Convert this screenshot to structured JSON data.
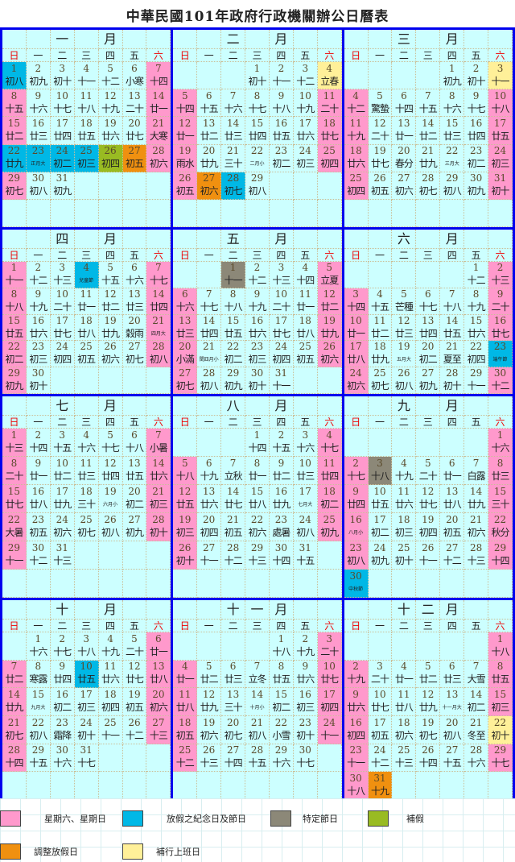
{
  "title": "中華民國101年政府行政機關辦公日曆表",
  "weekdays": [
    "日",
    "一",
    "二",
    "三",
    "四",
    "五",
    "六"
  ],
  "colors": {
    "background": "#ccffff",
    "weekend": "#ff99cc",
    "holiday": "#00b8e6",
    "special": "#8c8878",
    "makeup_holiday": "#99bb22",
    "adjusted": "#f09010",
    "makeup_workday": "#fff099",
    "border": "#0000ee"
  },
  "months": [
    {
      "header": [
        "一",
        "",
        "月"
      ],
      "lunar": [
        "初八",
        "初九",
        "初十",
        "十一",
        "十二",
        "小寒",
        "十四",
        "十五",
        "十六",
        "十七",
        "十八",
        "十九",
        "二十",
        "廿一",
        "廿二",
        "廿三",
        "廿四",
        "廿五",
        "廿六",
        "廿七",
        "大寒",
        "廿九",
        "正月大",
        "初二",
        "初三",
        "初四",
        "初五",
        "初六",
        "初七",
        "初八",
        "初九"
      ],
      "marks": {
        "1": "holiday",
        "22": "holiday",
        "23": "holiday",
        "24": "holiday",
        "25": "holiday",
        "26": "makeup_holiday",
        "27": "adjusted"
      }
    },
    {
      "header": [
        "二",
        "",
        "月"
      ],
      "lunar": [
        "初十",
        "十一",
        "十二",
        "立春",
        "十四",
        "十五",
        "十六",
        "十七",
        "十八",
        "十九",
        "二十",
        "廿一",
        "廿二",
        "廿三",
        "廿四",
        "廿五",
        "廿六",
        "廿七",
        "雨水",
        "廿九",
        "三十",
        "二月小",
        "初二",
        "初三",
        "初四",
        "初五",
        "初六",
        "初七",
        "初八"
      ],
      "marks": {
        "4": "makeup_workday",
        "27": "adjusted",
        "28": "holiday"
      }
    },
    {
      "header": [
        "三",
        "",
        "月"
      ],
      "lunar": [
        "初九",
        "初十",
        "十一",
        "十二",
        "驚蟄",
        "十四",
        "十五",
        "十六",
        "十七",
        "十八",
        "十九",
        "二十",
        "廿一",
        "廿二",
        "廿三",
        "廿四",
        "廿五",
        "廿六",
        "廿七",
        "春分",
        "廿九",
        "三月大",
        "初二",
        "初三",
        "初四",
        "初五",
        "初六",
        "初七",
        "初八",
        "初九",
        "初十"
      ],
      "marks": {
        "3": "makeup_workday"
      }
    },
    {
      "header": [
        "四",
        "",
        "月"
      ],
      "lunar": [
        "十一",
        "十二",
        "十三",
        "兒童節",
        "十五",
        "十六",
        "十七",
        "十八",
        "十九",
        "二十",
        "廿一",
        "廿二",
        "廿三",
        "廿四",
        "廿五",
        "廿六",
        "廿七",
        "廿八",
        "廿九",
        "穀雨",
        "四月大",
        "初二",
        "初三",
        "初四",
        "初五",
        "初六",
        "初七",
        "初八",
        "初九",
        "初十"
      ],
      "marks": {
        "4": "holiday"
      }
    },
    {
      "header": [
        "五",
        "",
        "月"
      ],
      "lunar": [
        "十一",
        "十二",
        "十三",
        "十四",
        "立夏",
        "十六",
        "十七",
        "十八",
        "十九",
        "二十",
        "廿一",
        "廿二",
        "廿三",
        "廿四",
        "廿五",
        "廿六",
        "廿七",
        "廿八",
        "廿九",
        "小滿",
        "閏四月小",
        "初二",
        "初三",
        "初四",
        "初五",
        "初六",
        "初七",
        "初八",
        "初九",
        "初十",
        "十一"
      ],
      "marks": {
        "1": "special"
      }
    },
    {
      "header": [
        "六",
        "",
        "月"
      ],
      "lunar": [
        "十二",
        "十三",
        "十四",
        "十五",
        "芒種",
        "十七",
        "十八",
        "十九",
        "二十",
        "廿一",
        "廿二",
        "廿三",
        "廿四",
        "廿五",
        "廿六",
        "廿七",
        "廿八",
        "廿九",
        "五月大",
        "初二",
        "夏至",
        "初四",
        "端午節",
        "初六",
        "初七",
        "初八",
        "初九",
        "初十",
        "十一",
        "十二"
      ],
      "marks": {
        "23": "holiday"
      }
    },
    {
      "header": [
        "七",
        "",
        "月"
      ],
      "lunar": [
        "十三",
        "十四",
        "十五",
        "十六",
        "十七",
        "十八",
        "小暑",
        "二十",
        "廿一",
        "廿二",
        "廿三",
        "廿四",
        "廿五",
        "廿六",
        "廿七",
        "廿八",
        "廿九",
        "三十",
        "六月小",
        "初二",
        "初三",
        "大暑",
        "初五",
        "初六",
        "初七",
        "初八",
        "初九",
        "初十",
        "十一",
        "十二",
        "十三"
      ],
      "marks": {}
    },
    {
      "header": [
        "八",
        "",
        "月"
      ],
      "lunar": [
        "十四",
        "十五",
        "十六",
        "十七",
        "十八",
        "十九",
        "立秋",
        "廿一",
        "廿二",
        "廿三",
        "廿四",
        "廿五",
        "廿六",
        "廿七",
        "廿八",
        "廿九",
        "七月大",
        "初二",
        "初三",
        "初四",
        "初五",
        "初六",
        "處暑",
        "初八",
        "初九",
        "初十",
        "十一",
        "十二",
        "十三",
        "十四",
        "十五"
      ],
      "marks": {}
    },
    {
      "header": [
        "九",
        "",
        "月"
      ],
      "lunar": [
        "十六",
        "十七",
        "十八",
        "十九",
        "二十",
        "廿一",
        "白露",
        "廿三",
        "廿四",
        "廿五",
        "廿六",
        "廿七",
        "廿八",
        "廿九",
        "三十",
        "八月小",
        "初二",
        "初三",
        "初四",
        "初五",
        "初六",
        "秋分",
        "初八",
        "初九",
        "初十",
        "十一",
        "十二",
        "十三",
        "十四",
        "中秋節"
      ],
      "marks": {
        "3": "special",
        "30": "holiday"
      }
    },
    {
      "header": [
        "十",
        "",
        "月"
      ],
      "lunar": [
        "十六",
        "十七",
        "十八",
        "十九",
        "二十",
        "廿一",
        "廿二",
        "寒露",
        "廿四",
        "廿五",
        "廿六",
        "廿七",
        "廿八",
        "廿九",
        "九月大",
        "初二",
        "初三",
        "初四",
        "初五",
        "初六",
        "初七",
        "初八",
        "霜降",
        "初十",
        "十一",
        "十二",
        "十三",
        "十四",
        "十五",
        "十六",
        "十七"
      ],
      "marks": {
        "10": "holiday"
      }
    },
    {
      "header": [
        "十",
        "一",
        "月"
      ],
      "lunar": [
        "十八",
        "十九",
        "二十",
        "廿一",
        "廿二",
        "廿三",
        "立冬",
        "廿五",
        "廿六",
        "廿七",
        "廿八",
        "廿九",
        "三十",
        "十月小",
        "初二",
        "初三",
        "初四",
        "初五",
        "初六",
        "初七",
        "初八",
        "小雪",
        "初十",
        "十一",
        "十二",
        "十三",
        "十四",
        "十五",
        "十六",
        "十七"
      ],
      "marks": {}
    },
    {
      "header": [
        "十",
        "二",
        "月"
      ],
      "lunar": [
        "十八",
        "十九",
        "二十",
        "廿一",
        "廿二",
        "廿三",
        "大雪",
        "廿五",
        "廿六",
        "廿七",
        "廿八",
        "廿九",
        "十一月大",
        "初二",
        "初三",
        "初四",
        "初五",
        "初六",
        "初七",
        "初八",
        "冬至",
        "初十",
        "十一",
        "十二",
        "十三",
        "十四",
        "十五",
        "十六",
        "十七",
        "十八",
        "十九"
      ],
      "marks": {
        "22": "makeup_workday",
        "31": "adjusted"
      }
    }
  ],
  "legend": [
    {
      "key": "weekend",
      "label": "星期六、星期日"
    },
    {
      "key": "holiday",
      "label": "放假之紀念日及節日"
    },
    {
      "key": "special",
      "label": "特定節日"
    },
    {
      "key": "makeup_holiday",
      "label": "補假"
    },
    {
      "key": "adjusted",
      "label": "調整放假日"
    },
    {
      "key": "makeup_workday",
      "label": "補行上班日"
    }
  ]
}
